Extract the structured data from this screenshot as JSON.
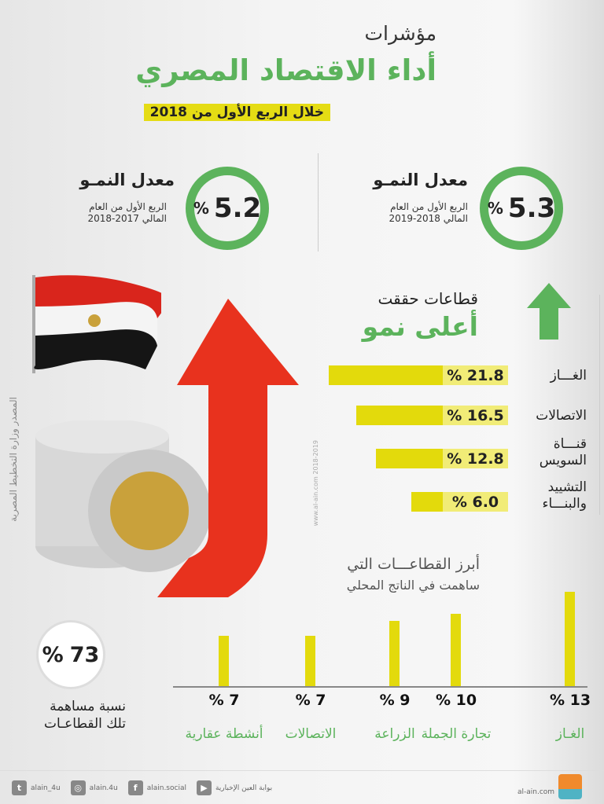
{
  "header": {
    "title_line1": "مؤشرات",
    "title_line2": "أداء الاقتصاد المصري",
    "subtitle": "خلال الربع الأول من 2018"
  },
  "growth": [
    {
      "title": "معدل النمـو",
      "value": "5.3",
      "unit": "%",
      "desc1": "الربع الأول من العام",
      "desc2": "المالي 2018-2019"
    },
    {
      "title": "معدل النمـو",
      "value": "5.2",
      "unit": "%",
      "desc1": "الربع الأول من العام",
      "desc2": "المالي 2017-2018"
    }
  ],
  "sectors_growth": {
    "title1": "قطاعات حققت",
    "title2": "أعلى نمو"
  },
  "watermark": "www.al-ain.com 2018-2019",
  "source": "المصدر وزارة التخطيط المصرية",
  "contribution": {
    "value": "73",
    "unit": "%",
    "label1": "نسبة مساهمة",
    "label2": "تلك القطاعـات"
  },
  "chart_data": [
    {
      "type": "bar",
      "orientation": "horizontal",
      "title": "قطاعات حققت أعلى نمو",
      "categories": [
        "الغـــاز",
        "الاتصالات",
        "قنـــاة السويس",
        "التشييد والبنـــاء"
      ],
      "values": [
        21.8,
        16.5,
        12.8,
        6.0
      ],
      "labels": [
        "% 21.8",
        "% 16.5",
        "% 12.8",
        "% 6.0"
      ],
      "unit": "%",
      "color": "#e3da0c"
    },
    {
      "type": "bar",
      "title": "أبرز القطاعـــات التي",
      "subtitle": "ساهمت في الناتج المحلي",
      "categories": [
        "الغـاز",
        "تجارة الجملة",
        "الزراعة",
        "الاتصالات",
        "أنشطة عقارية"
      ],
      "values": [
        13,
        10,
        9,
        7,
        7
      ],
      "labels": [
        "% 13",
        "% 10",
        "% 9",
        "% 7",
        "% 7"
      ],
      "unit": "%",
      "color": "#e3da0c",
      "category_color": "#5cb35c"
    }
  ],
  "footer": {
    "site": "al-ain.com",
    "logo_text": "العين الإخبارية",
    "youtube": "بوابة العين الإخبارية",
    "facebook": "alain.social",
    "instagram": "alain.4u",
    "twitter": "alain_4u"
  },
  "colors": {
    "green": "#5cb35c",
    "yellow": "#e3da0c",
    "red": "#e8321e"
  }
}
